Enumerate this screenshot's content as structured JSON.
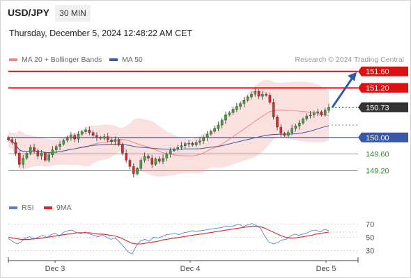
{
  "header": {
    "symbol": "USD/JPY",
    "timeframe": "30 MIN",
    "datetime": "Thursday, December 5, 2024 12:48:22 AM CET"
  },
  "legend": {
    "ma20": {
      "label": "MA 20 + Bollinger Bands",
      "color": "#ee8a85"
    },
    "ma50": {
      "label": "MA 50",
      "color": "#3858a6"
    }
  },
  "copyright": "Research © 2024 Trading Central",
  "rsi_legend": {
    "rsi": {
      "label": "RSI",
      "color": "#5b7fd6"
    },
    "ma9": {
      "label": "9MA",
      "color": "#e52222"
    }
  },
  "colors": {
    "up": "#3aa53a",
    "down": "#dd2a2a",
    "resistance": "#dd1111",
    "pivot": "#3858a6",
    "support": "#55aa55",
    "current": "#333333",
    "band": "#fbe0e0",
    "arrow": "#2f5aa8"
  },
  "chart_data": [
    {
      "type": "candlestick",
      "ylim": [
        148.55,
        151.78
      ],
      "x_ticks": [
        "Dec 3",
        "Dec 4",
        "Dec 5"
      ],
      "levels": [
        {
          "value": 151.6,
          "label": "151.60",
          "kind": "resistance"
        },
        {
          "value": 151.2,
          "label": "151.20",
          "kind": "resistance"
        },
        {
          "value": 150.73,
          "label": "150.73",
          "kind": "current"
        },
        {
          "value": 150.0,
          "label": "150.00",
          "kind": "pivot"
        },
        {
          "value": 149.6,
          "label": "149.60",
          "kind": "support"
        },
        {
          "value": 149.2,
          "label": "149.20",
          "kind": "support"
        }
      ],
      "close": [
        149.95,
        149.88,
        149.62,
        149.35,
        149.5,
        149.62,
        149.76,
        149.68,
        149.55,
        149.62,
        149.45,
        149.58,
        149.7,
        149.78,
        149.84,
        149.93,
        149.98,
        150.05,
        149.96,
        150.08,
        150.14,
        150.18,
        150.12,
        150.05,
        150.0,
        149.98,
        150.02,
        149.94,
        149.9,
        149.95,
        149.82,
        149.62,
        149.45,
        149.3,
        149.12,
        149.25,
        149.45,
        149.55,
        149.5,
        149.35,
        149.48,
        149.42,
        149.5,
        149.6,
        149.68,
        149.72,
        149.76,
        149.8,
        149.85,
        149.86,
        149.82,
        149.88,
        149.92,
        150.0,
        150.08,
        150.15,
        150.22,
        150.3,
        150.42,
        150.55,
        150.6,
        150.68,
        150.75,
        150.82,
        150.9,
        150.98,
        151.05,
        151.12,
        151.0,
        151.05,
        151.02,
        150.85,
        150.5,
        150.25,
        150.1,
        150.05,
        150.12,
        150.22,
        150.28,
        150.35,
        150.45,
        150.52,
        150.55,
        150.6,
        150.62,
        150.55,
        150.66,
        150.73
      ]
    },
    {
      "type": "line",
      "title": "RSI",
      "ylim": [
        20,
        80
      ],
      "y_ticks": [
        70,
        50,
        30
      ],
      "series": [
        {
          "name": "RSI",
          "values": [
            48,
            44,
            40,
            43,
            49,
            51,
            47,
            50,
            53,
            50,
            54,
            56,
            52,
            58,
            60,
            61,
            57,
            56,
            58,
            55,
            53,
            51,
            54,
            50,
            47,
            49,
            43,
            36,
            28,
            25,
            38,
            45,
            47,
            44,
            50,
            49,
            51,
            54,
            55,
            56,
            54,
            57,
            58,
            60,
            59,
            60,
            61,
            62,
            63,
            64,
            65,
            67,
            66,
            68,
            70,
            66,
            69,
            71,
            68,
            64,
            52,
            43,
            40,
            42,
            46,
            47,
            52,
            55,
            53,
            55,
            57,
            60,
            61,
            58,
            62,
            60
          ]
        },
        {
          "name": "9MA",
          "values": [
            50,
            49,
            48,
            47,
            47,
            47,
            48,
            48,
            49,
            50,
            51,
            52,
            53,
            54,
            55,
            56,
            57,
            57,
            57,
            57,
            56,
            55,
            55,
            54,
            53,
            52,
            50,
            47,
            44,
            41,
            40,
            40,
            41,
            42,
            43,
            44,
            46,
            47,
            48,
            49,
            50,
            51,
            52,
            53,
            54,
            55,
            56,
            57,
            58,
            59,
            60,
            61,
            62,
            63,
            64,
            65,
            66,
            67,
            67,
            66,
            64,
            61,
            58,
            55,
            52,
            50,
            49,
            49,
            50,
            51,
            52,
            53,
            55,
            56,
            57,
            58
          ]
        }
      ]
    }
  ]
}
